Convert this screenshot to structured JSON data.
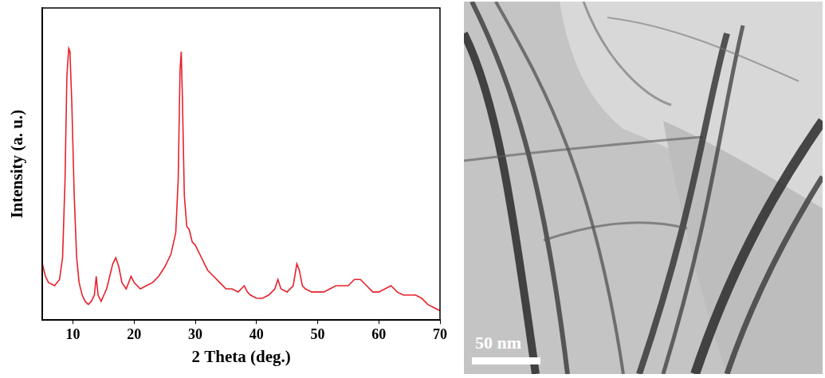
{
  "chart_data": {
    "type": "line",
    "x_label": "2 Theta (deg.)",
    "y_label": "Intensity (a. u.)",
    "x": [
      5,
      5.5,
      6,
      7,
      7.8,
      8.3,
      8.7,
      9.0,
      9.3,
      9.5,
      9.8,
      10.2,
      10.6,
      11,
      11.5,
      12,
      12.5,
      13.0,
      13.5,
      13.8,
      14.1,
      14.6,
      15.5,
      16.5,
      17,
      17.5,
      18,
      18.7,
      19.5,
      20,
      21,
      22,
      23,
      24,
      25,
      26,
      26.8,
      27.2,
      27.5,
      27.7,
      27.9,
      28.2,
      28.6,
      29,
      29.5,
      30,
      31,
      32,
      33,
      34,
      35,
      36,
      37,
      38,
      38.5,
      39,
      40,
      41,
      42,
      43,
      43.5,
      44,
      45,
      46,
      46.6,
      47,
      47.5,
      48,
      49,
      50,
      51,
      52,
      53,
      54,
      55,
      56,
      57,
      58,
      59,
      60,
      61,
      62,
      63,
      64,
      65,
      66,
      67,
      68,
      69,
      70
    ],
    "values": [
      18,
      14,
      12,
      11,
      13,
      20,
      45,
      78,
      87,
      86,
      70,
      40,
      20,
      12,
      8,
      6,
      5,
      6,
      8,
      14,
      8,
      6,
      10,
      18,
      20,
      17,
      12,
      10,
      14,
      12,
      10,
      11,
      12,
      14,
      17,
      21,
      28,
      45,
      80,
      86,
      70,
      40,
      30,
      29,
      25,
      24,
      20,
      16,
      14,
      12,
      10,
      10,
      9,
      11,
      9,
      8,
      7,
      7,
      8,
      10,
      13,
      10,
      9,
      11,
      18,
      16,
      11,
      10,
      9,
      9,
      9,
      10,
      11,
      11,
      11,
      13,
      13,
      11,
      9,
      9,
      10,
      11,
      9,
      8,
      8,
      8,
      7,
      5,
      4,
      3
    ],
    "color": "#e8202a",
    "xlim": [
      5,
      70
    ],
    "xticks": [
      10,
      20,
      30,
      40,
      50,
      60,
      70
    ],
    "ylim": [
      0,
      100
    ],
    "tick_labels": "x",
    "grid": false,
    "line_style": "solid",
    "marker": "none"
  },
  "image": {
    "scale_bar": "50 nm"
  }
}
